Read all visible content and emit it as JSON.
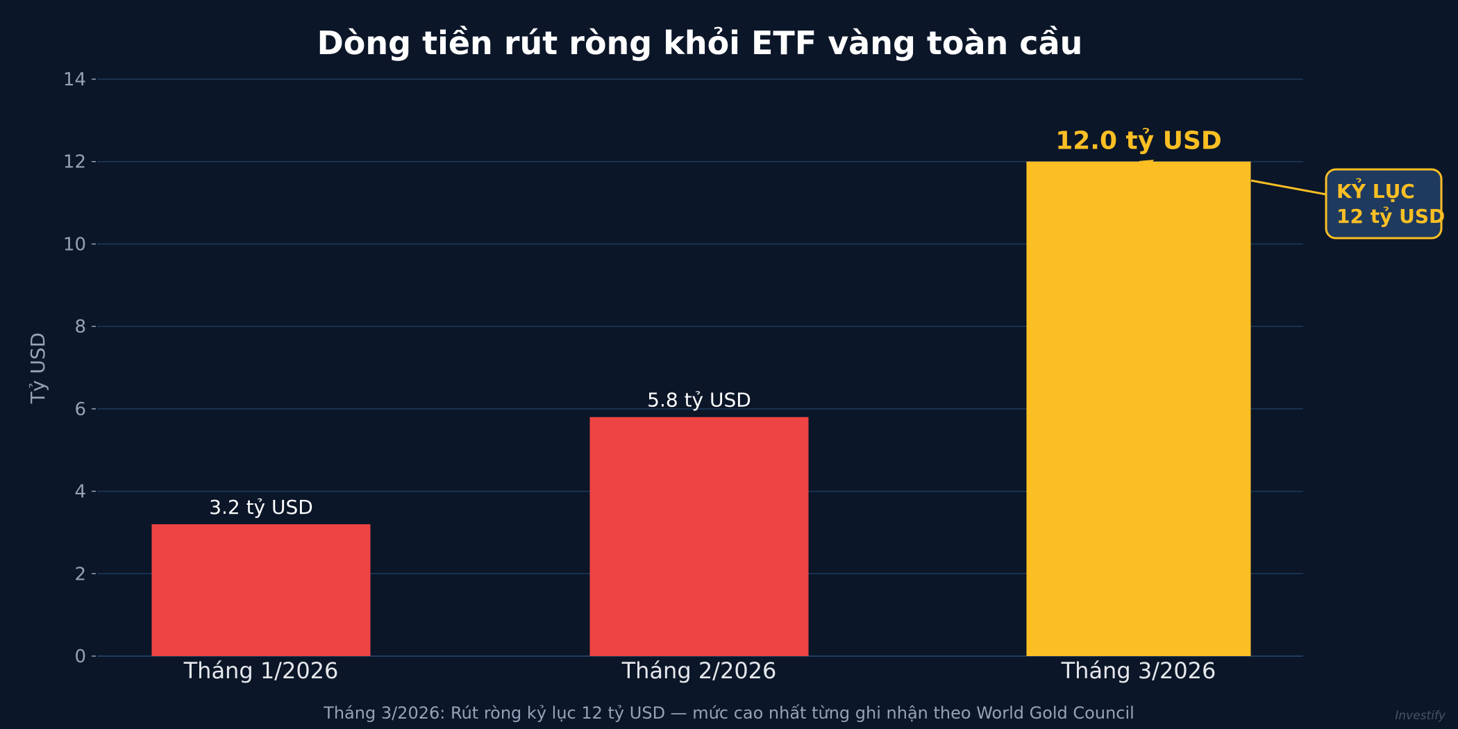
{
  "chart_data": {
    "type": "bar",
    "title": "Dòng tiền rút ròng khỏi ETF vàng toàn cầu",
    "ylabel": "Tỷ USD",
    "xlabel": "",
    "categories": [
      "Tháng 1/2026",
      "Tháng 2/2026",
      "Tháng 3/2026"
    ],
    "values": [
      3.2,
      5.8,
      12.0
    ],
    "data_labels": [
      "3.2 tỷ USD",
      "5.8 tỷ USD",
      "12.0 tỷ USD"
    ],
    "bar_colors": [
      "#ef4444",
      "#ef4444",
      "#fbbf24"
    ],
    "ylim": [
      0,
      14
    ],
    "yticks": [
      0,
      2,
      4,
      6,
      8,
      10,
      12,
      14
    ],
    "grid": true,
    "annotation": {
      "lines": [
        "KỶ LỤC",
        "12 tỷ USD"
      ],
      "target_category": "Tháng 3/2026"
    },
    "caption": "Tháng 3/2026: Rút ròng kỷ lục 12 tỷ USD — mức cao nhất từng ghi nhận theo World Gold Council",
    "watermark": "Investify"
  },
  "colors": {
    "background": "#0b1628",
    "grid": "#1e3a5f",
    "text": "#ffffff",
    "muted": "#94a3b8",
    "accent": "#fbbf24",
    "annotation_fill": "#1e3a5f"
  }
}
